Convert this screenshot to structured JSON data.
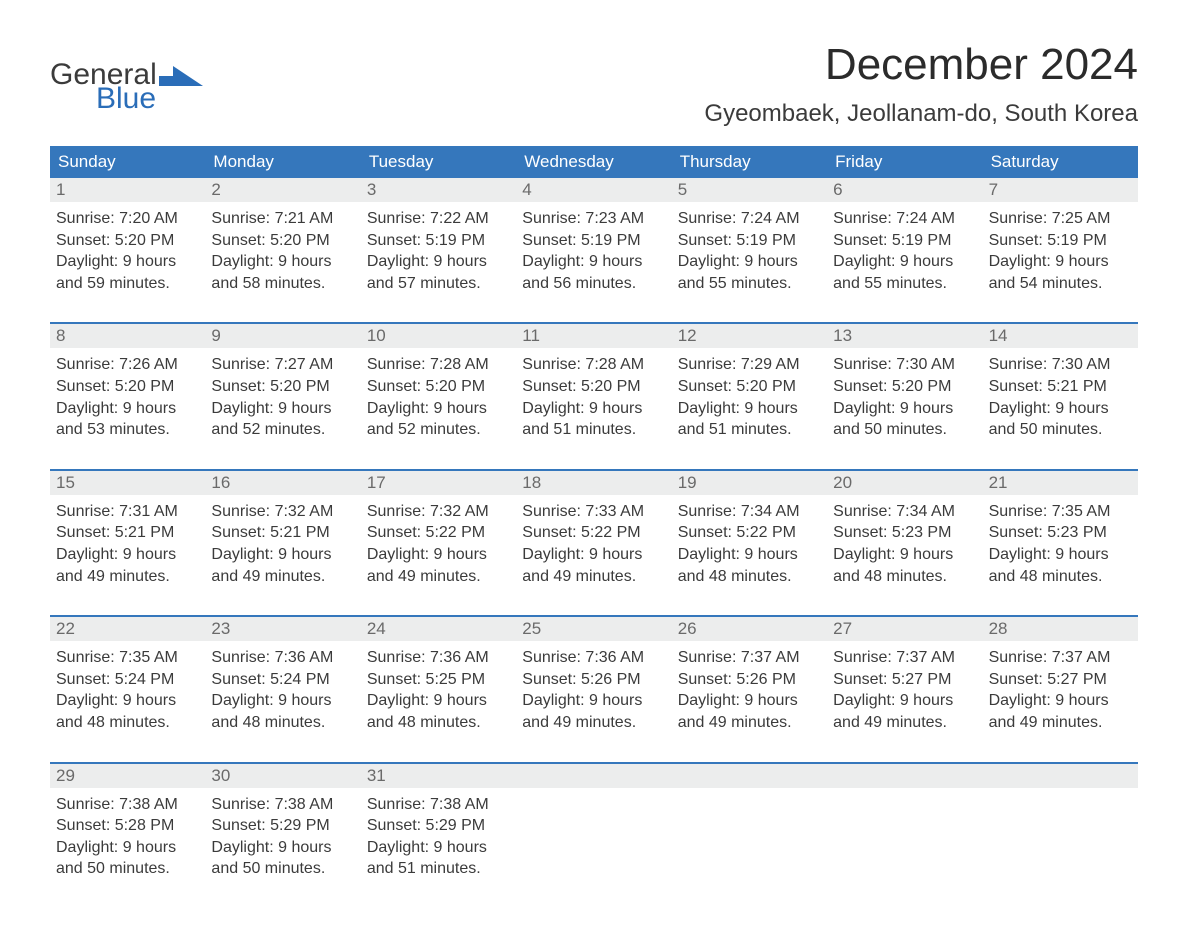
{
  "logo": {
    "text_general": "General",
    "text_blue": "Blue",
    "mark_color": "#2a6db8"
  },
  "title": "December 2024",
  "location": "Gyeombaek, Jeollanam-do, South Korea",
  "colors": {
    "header_bg": "#3577bc",
    "header_text": "#ffffff",
    "daynum_bg": "#eceded",
    "daynum_text": "#6a6a6a",
    "body_text": "#3b3b3b",
    "week_border": "#3577bc",
    "background": "#ffffff"
  },
  "typography": {
    "title_fontsize": 44,
    "location_fontsize": 24,
    "dow_fontsize": 17,
    "cell_fontsize": 16,
    "font_family": "Arial"
  },
  "days_of_week": [
    "Sunday",
    "Monday",
    "Tuesday",
    "Wednesday",
    "Thursday",
    "Friday",
    "Saturday"
  ],
  "labels": {
    "sunrise": "Sunrise:",
    "sunset": "Sunset:",
    "daylight": "Daylight:"
  },
  "weeks": [
    [
      {
        "n": "1",
        "sunrise": "7:20 AM",
        "sunset": "5:20 PM",
        "dl1": "9 hours",
        "dl2": "and 59 minutes."
      },
      {
        "n": "2",
        "sunrise": "7:21 AM",
        "sunset": "5:20 PM",
        "dl1": "9 hours",
        "dl2": "and 58 minutes."
      },
      {
        "n": "3",
        "sunrise": "7:22 AM",
        "sunset": "5:19 PM",
        "dl1": "9 hours",
        "dl2": "and 57 minutes."
      },
      {
        "n": "4",
        "sunrise": "7:23 AM",
        "sunset": "5:19 PM",
        "dl1": "9 hours",
        "dl2": "and 56 minutes."
      },
      {
        "n": "5",
        "sunrise": "7:24 AM",
        "sunset": "5:19 PM",
        "dl1": "9 hours",
        "dl2": "and 55 minutes."
      },
      {
        "n": "6",
        "sunrise": "7:24 AM",
        "sunset": "5:19 PM",
        "dl1": "9 hours",
        "dl2": "and 55 minutes."
      },
      {
        "n": "7",
        "sunrise": "7:25 AM",
        "sunset": "5:19 PM",
        "dl1": "9 hours",
        "dl2": "and 54 minutes."
      }
    ],
    [
      {
        "n": "8",
        "sunrise": "7:26 AM",
        "sunset": "5:20 PM",
        "dl1": "9 hours",
        "dl2": "and 53 minutes."
      },
      {
        "n": "9",
        "sunrise": "7:27 AM",
        "sunset": "5:20 PM",
        "dl1": "9 hours",
        "dl2": "and 52 minutes."
      },
      {
        "n": "10",
        "sunrise": "7:28 AM",
        "sunset": "5:20 PM",
        "dl1": "9 hours",
        "dl2": "and 52 minutes."
      },
      {
        "n": "11",
        "sunrise": "7:28 AM",
        "sunset": "5:20 PM",
        "dl1": "9 hours",
        "dl2": "and 51 minutes."
      },
      {
        "n": "12",
        "sunrise": "7:29 AM",
        "sunset": "5:20 PM",
        "dl1": "9 hours",
        "dl2": "and 51 minutes."
      },
      {
        "n": "13",
        "sunrise": "7:30 AM",
        "sunset": "5:20 PM",
        "dl1": "9 hours",
        "dl2": "and 50 minutes."
      },
      {
        "n": "14",
        "sunrise": "7:30 AM",
        "sunset": "5:21 PM",
        "dl1": "9 hours",
        "dl2": "and 50 minutes."
      }
    ],
    [
      {
        "n": "15",
        "sunrise": "7:31 AM",
        "sunset": "5:21 PM",
        "dl1": "9 hours",
        "dl2": "and 49 minutes."
      },
      {
        "n": "16",
        "sunrise": "7:32 AM",
        "sunset": "5:21 PM",
        "dl1": "9 hours",
        "dl2": "and 49 minutes."
      },
      {
        "n": "17",
        "sunrise": "7:32 AM",
        "sunset": "5:22 PM",
        "dl1": "9 hours",
        "dl2": "and 49 minutes."
      },
      {
        "n": "18",
        "sunrise": "7:33 AM",
        "sunset": "5:22 PM",
        "dl1": "9 hours",
        "dl2": "and 49 minutes."
      },
      {
        "n": "19",
        "sunrise": "7:34 AM",
        "sunset": "5:22 PM",
        "dl1": "9 hours",
        "dl2": "and 48 minutes."
      },
      {
        "n": "20",
        "sunrise": "7:34 AM",
        "sunset": "5:23 PM",
        "dl1": "9 hours",
        "dl2": "and 48 minutes."
      },
      {
        "n": "21",
        "sunrise": "7:35 AM",
        "sunset": "5:23 PM",
        "dl1": "9 hours",
        "dl2": "and 48 minutes."
      }
    ],
    [
      {
        "n": "22",
        "sunrise": "7:35 AM",
        "sunset": "5:24 PM",
        "dl1": "9 hours",
        "dl2": "and 48 minutes."
      },
      {
        "n": "23",
        "sunrise": "7:36 AM",
        "sunset": "5:24 PM",
        "dl1": "9 hours",
        "dl2": "and 48 minutes."
      },
      {
        "n": "24",
        "sunrise": "7:36 AM",
        "sunset": "5:25 PM",
        "dl1": "9 hours",
        "dl2": "and 48 minutes."
      },
      {
        "n": "25",
        "sunrise": "7:36 AM",
        "sunset": "5:26 PM",
        "dl1": "9 hours",
        "dl2": "and 49 minutes."
      },
      {
        "n": "26",
        "sunrise": "7:37 AM",
        "sunset": "5:26 PM",
        "dl1": "9 hours",
        "dl2": "and 49 minutes."
      },
      {
        "n": "27",
        "sunrise": "7:37 AM",
        "sunset": "5:27 PM",
        "dl1": "9 hours",
        "dl2": "and 49 minutes."
      },
      {
        "n": "28",
        "sunrise": "7:37 AM",
        "sunset": "5:27 PM",
        "dl1": "9 hours",
        "dl2": "and 49 minutes."
      }
    ],
    [
      {
        "n": "29",
        "sunrise": "7:38 AM",
        "sunset": "5:28 PM",
        "dl1": "9 hours",
        "dl2": "and 50 minutes."
      },
      {
        "n": "30",
        "sunrise": "7:38 AM",
        "sunset": "5:29 PM",
        "dl1": "9 hours",
        "dl2": "and 50 minutes."
      },
      {
        "n": "31",
        "sunrise": "7:38 AM",
        "sunset": "5:29 PM",
        "dl1": "9 hours",
        "dl2": "and 51 minutes."
      },
      null,
      null,
      null,
      null
    ]
  ]
}
